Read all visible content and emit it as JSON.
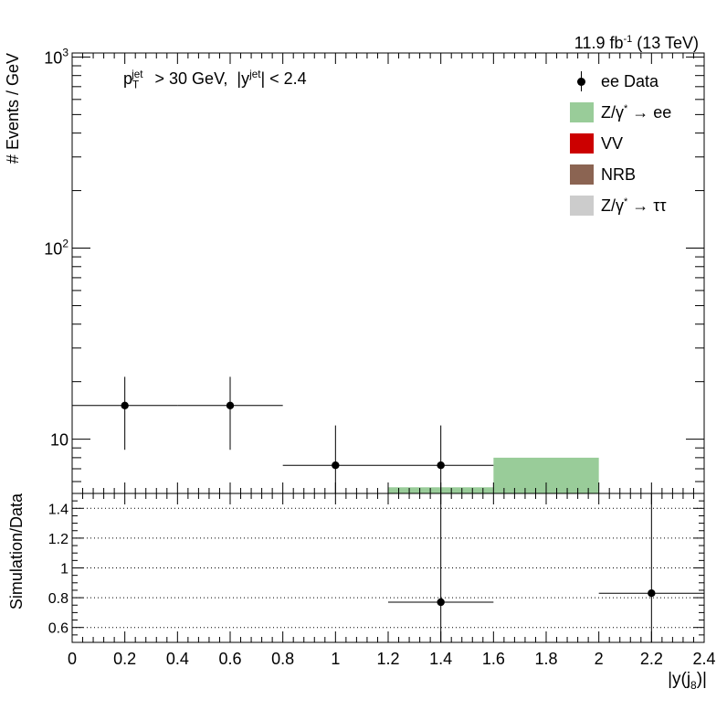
{
  "chart_data": {
    "type": "bar",
    "lumi_label": "11.9 fb-1 (13 TeV)",
    "lumi": {
      "value": "11.9 fb",
      "exp": "-1",
      "energy": " (13 TeV)"
    },
    "cut_label": "pT^jet > 30 GeV,  |y^jet| < 2.4",
    "xlabel": {
      "base": "|y(j",
      "sub": "8",
      "end": ")|"
    },
    "upper": {
      "ylabel": "# Events / GeV",
      "yscale": "log",
      "ylim": [
        5.2,
        1050
      ],
      "ytick_labels": [
        {
          "value": 10,
          "label": "10"
        },
        {
          "value": 100,
          "base": "10",
          "exp": "2"
        },
        {
          "value": 1000,
          "base": "10",
          "exp": "3"
        }
      ],
      "stack": {
        "name": "Z/γ* → ee",
        "color": "#99cc99",
        "bins": [
          {
            "x_low": 0.0,
            "x_high": 0.4,
            "value": 0
          },
          {
            "x_low": 0.4,
            "x_high": 0.8,
            "value": 0
          },
          {
            "x_low": 0.8,
            "x_high": 1.2,
            "value": 0
          },
          {
            "x_low": 1.2,
            "x_high": 1.6,
            "value": 5.6
          },
          {
            "x_low": 1.6,
            "x_high": 2.0,
            "value": 8.0
          },
          {
            "x_low": 2.0,
            "x_high": 2.4,
            "value": 0
          }
        ]
      },
      "data": [
        {
          "x": 0.2,
          "x_low": 0.0,
          "x_high": 0.4,
          "y": 15.0,
          "y_low": 8.8,
          "y_high": 21.2
        },
        {
          "x": 0.6,
          "x_low": 0.4,
          "x_high": 0.8,
          "y": 15.0,
          "y_low": 8.8,
          "y_high": 21.2
        },
        {
          "x": 1.0,
          "x_low": 0.8,
          "x_high": 1.2,
          "y": 7.3,
          "y_low": 5.2,
          "y_high": 11.8
        },
        {
          "x": 1.4,
          "x_low": 1.2,
          "x_high": 1.6,
          "y": 7.3,
          "y_low": 5.2,
          "y_high": 11.8
        }
      ]
    },
    "ratio": {
      "ylabel": "Simulation/Data",
      "ylim": [
        0.5,
        1.5
      ],
      "yticks": [
        0.6,
        0.8,
        1,
        1.2,
        1.4
      ],
      "ytick_labels": [
        "0.6",
        "0.8",
        "1",
        "1.2",
        "1.4"
      ],
      "gridlines": [
        0.6,
        0.8,
        1.0,
        1.2,
        1.4
      ],
      "points": [
        {
          "x": 1.4,
          "x_low": 1.2,
          "x_high": 1.6,
          "y": 0.77,
          "y_low": 0.5,
          "y_high": 1.5
        },
        {
          "x": 2.2,
          "x_low": 2.0,
          "x_high": 2.4,
          "y": 0.83,
          "y_low": 0.5,
          "y_high": 1.5
        }
      ]
    },
    "xlim": [
      0,
      2.4
    ],
    "xticks": [
      0,
      0.2,
      0.4,
      0.6,
      0.8,
      1,
      1.2,
      1.4,
      1.6,
      1.8,
      2,
      2.2,
      2.4
    ],
    "xtick_labels": [
      "0",
      "0.2",
      "0.4",
      "0.6",
      "0.8",
      "1",
      "1.2",
      "1.4",
      "1.6",
      "1.8",
      "2",
      "2.2",
      "2.4"
    ],
    "legend": {
      "placement": "top-right",
      "entries": [
        {
          "label": "ee Data",
          "kind": "marker",
          "color": "#000000"
        },
        {
          "label": "Z/γ* → ee",
          "base": "Z/γ",
          "sup": "*",
          "rest": " → ee",
          "kind": "box",
          "color": "#99cc99"
        },
        {
          "label": "VV",
          "kind": "box",
          "color": "#cc0000"
        },
        {
          "label": "NRB",
          "kind": "box",
          "color": "#8b6452"
        },
        {
          "label": "Z/γ* → ττ",
          "base": "Z/γ",
          "sup": "*",
          "rest": " → ττ",
          "kind": "box",
          "color": "#cccccc"
        }
      ]
    }
  }
}
